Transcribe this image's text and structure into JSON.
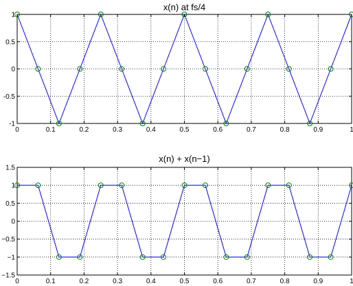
{
  "chart_data": [
    {
      "type": "line",
      "title": "x(n) at fs/4",
      "xlabel": "",
      "ylabel": "",
      "xlim": [
        0,
        1
      ],
      "ylim": [
        -1,
        1
      ],
      "xticks": [
        "0",
        "0.1",
        "0.2",
        "0.3",
        "0.4",
        "0.5",
        "0.6",
        "0.7",
        "0.8",
        "0.9",
        "1"
      ],
      "yticks": [
        "-1",
        "-0.5",
        "0",
        "0.5",
        "1"
      ],
      "grid": true,
      "series": [
        {
          "color": "#0000ff",
          "marker_color": "#008000",
          "x": [
            0,
            0.0625,
            0.125,
            0.1875,
            0.25,
            0.3125,
            0.375,
            0.4375,
            0.5,
            0.5625,
            0.625,
            0.6875,
            0.75,
            0.8125,
            0.875,
            0.9375,
            1
          ],
          "y": [
            1,
            0,
            -1,
            0,
            1,
            0,
            -1,
            0,
            1,
            0,
            -1,
            0,
            1,
            0,
            -1,
            0,
            1
          ]
        }
      ]
    },
    {
      "type": "line",
      "title": "x(n) + x(n−1)",
      "xlabel": "",
      "ylabel": "",
      "xlim": [
        0,
        1
      ],
      "ylim": [
        -1.5,
        1.5
      ],
      "xticks": [
        "0",
        "0.1",
        "0.2",
        "0.3",
        "0.4",
        "0.5",
        "0.6",
        "0.7",
        "0.8",
        "0.9",
        "1"
      ],
      "yticks": [
        "−1.5",
        "−1",
        "−0.5",
        "0",
        "0.5",
        "1",
        "1.5"
      ],
      "grid": true,
      "series": [
        {
          "color": "#0000ff",
          "marker_color": "#008000",
          "x": [
            0,
            0.0625,
            0.125,
            0.1875,
            0.25,
            0.3125,
            0.375,
            0.4375,
            0.5,
            0.5625,
            0.625,
            0.6875,
            0.75,
            0.8125,
            0.875,
            0.9375,
            1
          ],
          "y": [
            1,
            1,
            -1,
            -1,
            1,
            1,
            -1,
            -1,
            1,
            1,
            -1,
            -1,
            1,
            1,
            -1,
            -1,
            1
          ]
        }
      ]
    }
  ]
}
